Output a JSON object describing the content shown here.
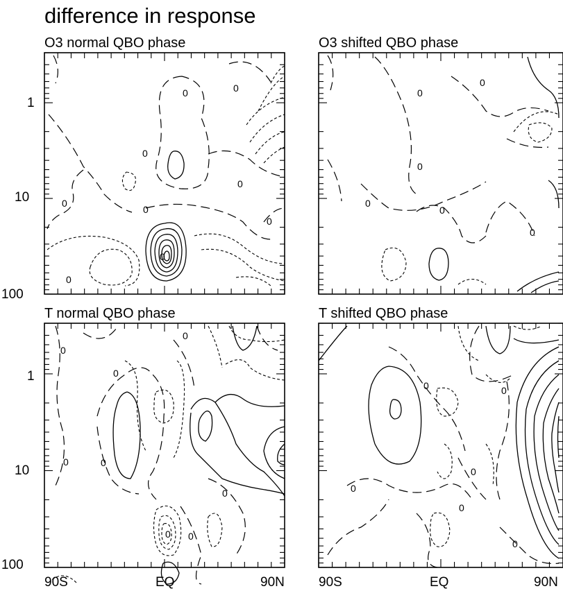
{
  "figure": {
    "title": "difference in response"
  },
  "chart_data": [
    {
      "type": "contour",
      "title": "O3 normal QBO phase",
      "xticks": [
        "90S",
        "EQ",
        "90N"
      ],
      "yticks": [
        "1",
        "10",
        "100"
      ],
      "ylim": [
        100,
        0.3
      ],
      "yscale": "log",
      "xlim": [
        -90,
        90
      ],
      "zero_labels": [
        "0",
        "0",
        "0",
        "0",
        "0",
        "0",
        "0",
        "0",
        "0"
      ]
    },
    {
      "type": "contour",
      "title": "O3 shifted QBO phase",
      "xticks": [
        "90S",
        "EQ",
        "90N"
      ],
      "yticks": [],
      "ylim": [
        100,
        0.3
      ],
      "yscale": "log",
      "xlim": [
        -90,
        90
      ],
      "zero_labels": [
        "0",
        "0",
        "0",
        "0",
        "0",
        "0"
      ]
    },
    {
      "type": "contour",
      "title": "T  normal QBO phase",
      "xticks": [
        "90S",
        "EQ",
        "90N"
      ],
      "yticks": [
        "1",
        "10",
        "100"
      ],
      "ylim": [
        100,
        0.3
      ],
      "yscale": "log",
      "xlim": [
        -90,
        90
      ],
      "zero_labels": [
        "0",
        "0",
        "0",
        "0",
        "0",
        "0",
        "0",
        "0"
      ]
    },
    {
      "type": "contour",
      "title": "T  shifted QBO phase",
      "xticks": [
        "90S",
        "EQ",
        "90N"
      ],
      "yticks": [],
      "ylim": [
        100,
        0.3
      ],
      "yscale": "log",
      "xlim": [
        -90,
        90
      ],
      "zero_labels": [
        "0",
        "0",
        "0",
        "0",
        "0",
        "0"
      ]
    }
  ]
}
